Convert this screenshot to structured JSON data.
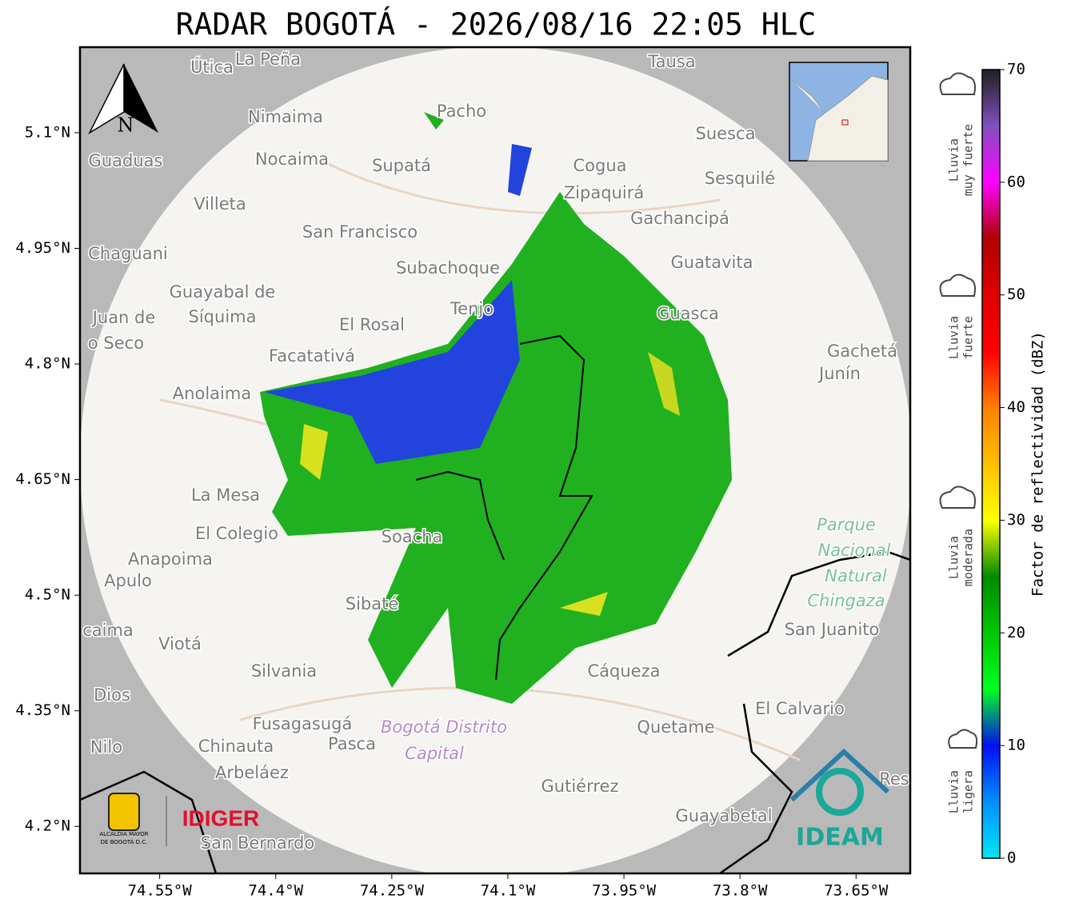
{
  "title": "RADAR BOGOTÁ - 2026/08/16 22:05 HLC",
  "map": {
    "xlim": [
      -74.653,
      -73.58
    ],
    "ylim": [
      4.139,
      5.211
    ],
    "xticks": [
      {
        "value": -74.55,
        "label": "74.55°W"
      },
      {
        "value": -74.4,
        "label": "74.4°W"
      },
      {
        "value": -74.25,
        "label": "74.25°W"
      },
      {
        "value": -74.1,
        "label": "74.1°W"
      },
      {
        "value": -73.95,
        "label": "73.95°W"
      },
      {
        "value": -73.8,
        "label": "73.8°W"
      },
      {
        "value": -73.65,
        "label": "73.65°W"
      }
    ],
    "yticks": [
      {
        "value": 4.2,
        "label": "4.2°N"
      },
      {
        "value": 4.35,
        "label": "4.35°N"
      },
      {
        "value": 4.5,
        "label": "4.5°N"
      },
      {
        "value": 4.65,
        "label": "4.65°N"
      },
      {
        "value": 4.8,
        "label": "4.8°N"
      },
      {
        "value": 4.95,
        "label": "4.95°N"
      },
      {
        "value": 5.1,
        "label": "5.1°N"
      }
    ],
    "grid": true,
    "north": "N",
    "places": [
      "Útica",
      "La Peña",
      "Tausa",
      "Pacho",
      "Nimaima",
      "Guaduas",
      "Nocaima",
      "Supatá",
      "Cogua",
      "Suesca",
      "Sesquilé",
      "Zipaquirá",
      "Villeta",
      "Gachancipá",
      "San Francisco",
      "Chaguani",
      "Subachoque",
      "Guatavita",
      "Guayabal de",
      "Síquima",
      "Juan de",
      "o Seco",
      "Tenjo",
      "El Rosal",
      "Guasca",
      "Facatativá",
      "Gachetá",
      "Junín",
      "Anolaima",
      "La Mesa",
      "El Colegio",
      "Soacha",
      "Anapoima",
      "Apulo",
      "Sibaté",
      "San Juanito",
      "caima",
      "Viotá",
      "Silvania",
      "Cáqueza",
      "Dios",
      "El Calvario",
      "Fusagasugá",
      "Quetame",
      "Nilo",
      "Chinauta",
      "Pasca",
      "Arbeláez",
      "Gutiérrez",
      "Guayabetal",
      "San Bernardo",
      "Res",
      "Bogotá Distrito",
      "Capital",
      "Parque",
      "Nacional",
      "Natural",
      "Chingaza"
    ]
  },
  "colorbar": {
    "label": "Factor de reflectividad (dBZ)",
    "lim": [
      0,
      70
    ],
    "ticks": [
      0,
      10,
      20,
      30,
      40,
      50,
      60,
      70
    ],
    "colors": [
      "#00e5f5",
      "#0090ff",
      "#0010f0",
      "#00ff20",
      "#00c800",
      "#008a00",
      "#ffff00",
      "#ffc000",
      "#ff8000",
      "#ff0000",
      "#e00000",
      "#b00000",
      "#ff00ff",
      "#8050c0",
      "#202020"
    ]
  },
  "rain_levels": [
    [
      "Lluvia",
      "muy fuerte"
    ],
    [
      "Lluvia",
      "fuerte"
    ],
    [
      "Lluvia",
      "moderada"
    ],
    [
      "Lluvia",
      "ligera"
    ]
  ],
  "logos": {
    "idiger": "IDIGER",
    "ideam": "IDEAM",
    "alcaldia": [
      "ALCALDÍA MAYOR",
      "DE BOGOTÁ D.C."
    ]
  }
}
